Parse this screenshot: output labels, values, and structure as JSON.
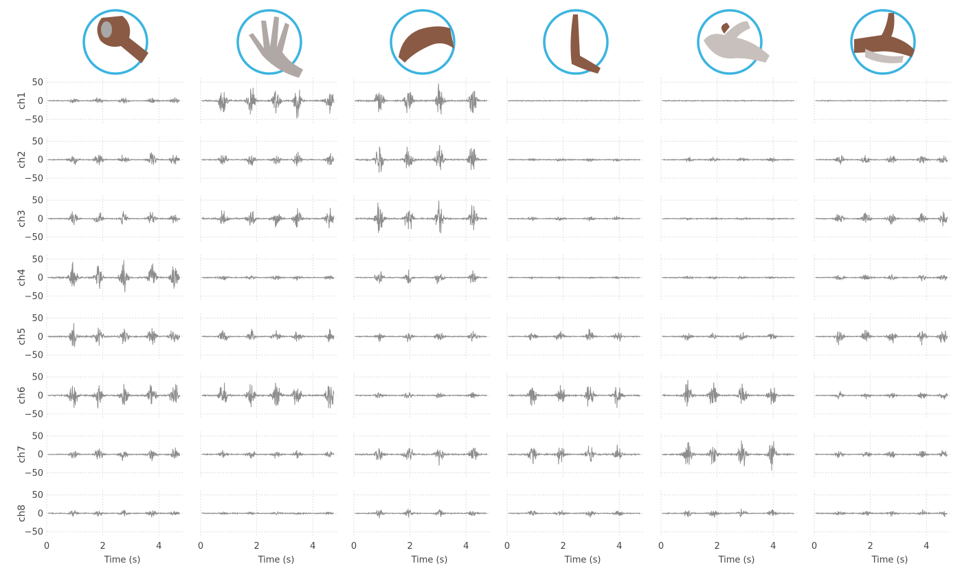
{
  "gestures": [
    {
      "name": "fist-gesture-icon"
    },
    {
      "name": "open-hand-gesture-icon"
    },
    {
      "name": "wrist-flexion-gesture-icon"
    },
    {
      "name": "wrist-extension-gesture-icon"
    },
    {
      "name": "pinch-gesture-icon"
    },
    {
      "name": "pointing-gesture-icon"
    }
  ],
  "colors": {
    "signal": "#8c8c8c",
    "circle": "#3bb4e0",
    "grid": "#dddddd",
    "text": "#444444",
    "hand": "#8a5a44"
  },
  "chart_data": {
    "type": "line",
    "channels": [
      "ch1",
      "ch2",
      "ch3",
      "ch4",
      "ch5",
      "ch6",
      "ch7",
      "ch8"
    ],
    "columns": 6,
    "xlabel": "Time (s)",
    "xlim": [
      0,
      4.9
    ],
    "ylim": [
      -55,
      55
    ],
    "xticks": [
      0,
      2,
      4
    ],
    "xtick_labels": [
      "0",
      "2",
      "4"
    ],
    "yticks": [
      50,
      0,
      -50
    ],
    "ytick_labels": [
      "50",
      "0",
      "−50"
    ],
    "grid": true,
    "burst_times": [
      [
        0.95,
        1.85,
        2.75,
        3.75,
        4.55
      ],
      [
        0.8,
        1.8,
        2.7,
        3.45,
        4.6
      ],
      [
        0.9,
        1.95,
        3.05,
        4.25
      ],
      [
        0.9,
        1.9,
        2.95,
        3.95
      ],
      [
        0.95,
        1.85,
        2.9,
        3.95
      ],
      [
        0.9,
        1.85,
        2.75,
        3.85,
        4.6
      ]
    ],
    "burst_amplitudes": [
      [
        12,
        55,
        55,
        0,
        0,
        0
      ],
      [
        25,
        25,
        60,
        6,
        10,
        20
      ],
      [
        25,
        35,
        55,
        8,
        3,
        28
      ],
      [
        55,
        10,
        25,
        2,
        4,
        12
      ],
      [
        35,
        25,
        18,
        22,
        15,
        30
      ],
      [
        50,
        55,
        12,
        45,
        50,
        15
      ],
      [
        25,
        15,
        35,
        35,
        50,
        15
      ],
      [
        12,
        4,
        15,
        12,
        15,
        10
      ]
    ]
  }
}
